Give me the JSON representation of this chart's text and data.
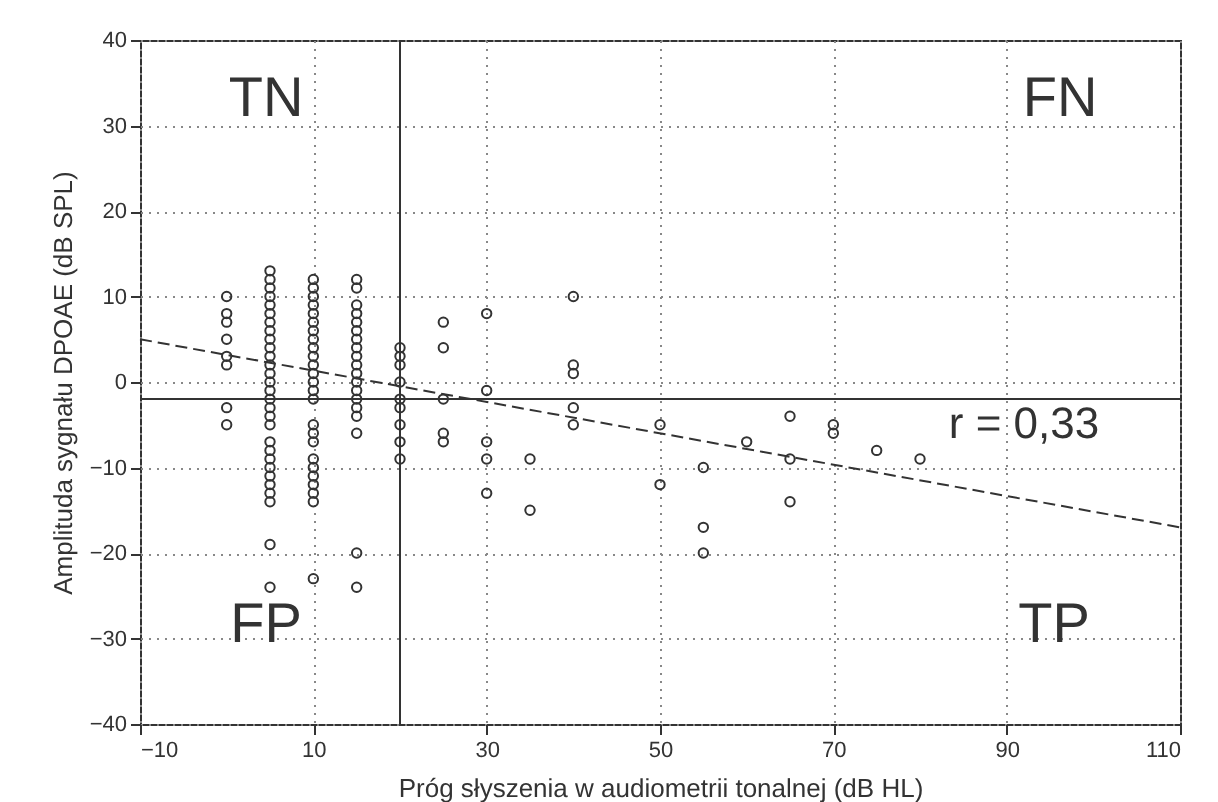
{
  "chart_data": {
    "type": "scatter",
    "xlabel": "Próg słyszenia w audiometrii tonalnej (dB HL)",
    "ylabel": "Amplituda sygnału DPOAE (dB SPL)",
    "xlim": [
      -10,
      110
    ],
    "xticks": [
      -10,
      10,
      30,
      50,
      70,
      90,
      110
    ],
    "ylim": [
      -40,
      40
    ],
    "yticks": [
      -40,
      -30,
      -20,
      -10,
      0,
      10,
      20,
      30,
      40
    ],
    "grid": true,
    "series": [
      {
        "color": "#333333",
        "marker": "circle",
        "x": [
          0,
          0,
          0,
          0,
          0,
          0,
          0,
          0,
          5,
          5,
          5,
          5,
          5,
          5,
          5,
          5,
          5,
          5,
          5,
          5,
          5,
          5,
          5,
          5,
          5,
          5,
          5,
          5,
          5,
          5,
          5,
          5,
          5,
          5,
          5,
          5,
          5,
          10,
          10,
          10,
          10,
          10,
          10,
          10,
          10,
          10,
          10,
          10,
          10,
          10,
          10,
          10,
          10,
          10,
          10,
          10,
          10,
          10,
          10,
          10,
          10,
          10,
          15,
          15,
          15,
          15,
          15,
          15,
          15,
          15,
          15,
          15,
          15,
          15,
          15,
          15,
          15,
          15,
          15,
          15,
          15,
          20,
          20,
          20,
          20,
          20,
          20,
          20,
          20,
          20,
          25,
          25,
          25,
          25,
          25,
          30,
          30,
          30,
          30,
          30,
          35,
          35,
          40,
          40,
          40,
          40,
          40,
          50,
          50,
          55,
          55,
          55,
          60,
          65,
          65,
          65,
          70,
          70,
          75,
          80
        ],
        "values": [
          10,
          8,
          7,
          5,
          3,
          2,
          -3,
          -5,
          13,
          12,
          11,
          10,
          9,
          8,
          7,
          6,
          5,
          4,
          3,
          2,
          1,
          0,
          -1,
          -2,
          -3,
          -4,
          -5,
          -7,
          -8,
          -9,
          -10,
          -11,
          -12,
          -13,
          -14,
          -19,
          -24,
          12,
          11,
          10,
          9,
          8,
          7,
          6,
          5,
          4,
          3,
          2,
          1,
          0,
          -1,
          -2,
          -5,
          -6,
          -7,
          -9,
          -10,
          -11,
          -12,
          -13,
          -14,
          -23,
          12,
          11,
          9,
          8,
          7,
          6,
          5,
          4,
          3,
          2,
          1,
          0,
          -1,
          -2,
          -3,
          -4,
          -6,
          -20,
          -24,
          4,
          3,
          2,
          0,
          -2,
          -3,
          -5,
          -7,
          -9,
          7,
          4,
          -2,
          -6,
          -7,
          8,
          -1,
          -7,
          -9,
          -13,
          -9,
          -15,
          10,
          2,
          1,
          -3,
          -5,
          -5,
          -12,
          -10,
          -17,
          -20,
          -7,
          -4,
          -9,
          -14,
          -5,
          -6,
          -8,
          -9
        ]
      },
      {
        "type": "line",
        "color": "#333333",
        "x": [
          -10,
          110
        ],
        "values": [
          5,
          -17
        ],
        "line_style": "dashed"
      }
    ],
    "ref_lines": [
      {
        "axis": "y",
        "value": -2,
        "color": "#333333"
      },
      {
        "axis": "x",
        "value": 20,
        "color": "#333333"
      }
    ],
    "annotations": [
      "TN",
      "FN",
      "FP",
      "TP",
      "r = 0,33"
    ]
  }
}
